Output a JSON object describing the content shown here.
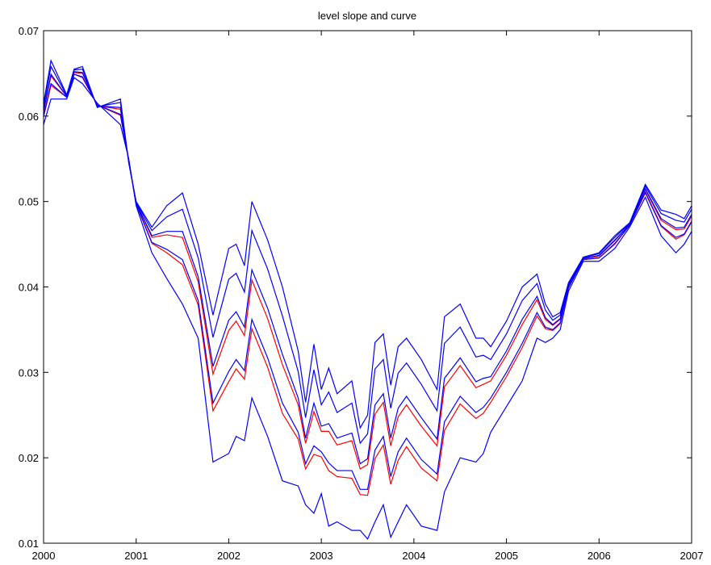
{
  "chart_data": {
    "type": "line",
    "title": "level slope and curve",
    "x": [
      2000.0,
      2000.08,
      2000.25,
      2000.33,
      2000.42,
      2000.58,
      2000.83,
      2000.92,
      2001.0,
      2001.17,
      2001.33,
      2001.5,
      2001.67,
      2001.83,
      2002.0,
      2002.08,
      2002.17,
      2002.25,
      2002.42,
      2002.58,
      2002.75,
      2002.83,
      2002.92,
      2003.0,
      2003.08,
      2003.17,
      2003.33,
      2003.42,
      2003.5,
      2003.58,
      2003.67,
      2003.75,
      2003.83,
      2003.92,
      2004.08,
      2004.25,
      2004.33,
      2004.5,
      2004.67,
      2004.75,
      2004.83,
      2005.0,
      2005.17,
      2005.33,
      2005.42,
      2005.5,
      2005.58,
      2005.67,
      2005.83,
      2006.0,
      2006.17,
      2006.33,
      2006.5,
      2006.67,
      2006.83,
      2006.92,
      2007.0
    ],
    "series": [
      {
        "color": "#ff0000",
        "values": [
          0.0605,
          0.0647,
          0.0623,
          0.0651,
          0.065,
          0.0612,
          0.0608,
          0.0547,
          0.0498,
          0.0458,
          0.0461,
          0.0458,
          0.0406,
          0.0298,
          0.0349,
          0.036,
          0.0343,
          0.0408,
          0.0363,
          0.0309,
          0.0262,
          0.0217,
          0.0254,
          0.0231,
          0.0231,
          0.0215,
          0.022,
          0.0187,
          0.0192,
          0.0251,
          0.0265,
          0.0214,
          0.0248,
          0.0262,
          0.0237,
          0.0214,
          0.0283,
          0.0308,
          0.0282,
          0.0286,
          0.029,
          0.032,
          0.0356,
          0.0385,
          0.0362,
          0.0355,
          0.0362,
          0.0401,
          0.0433,
          0.0436,
          0.0454,
          0.0473,
          0.0514,
          0.0478,
          0.0467,
          0.0468,
          0.0483
        ]
      },
      {
        "color": "#ff0000",
        "values": [
          0.0599,
          0.0636,
          0.0622,
          0.0649,
          0.0645,
          0.0613,
          0.0601,
          0.0548,
          0.0497,
          0.0451,
          0.044,
          0.0426,
          0.0379,
          0.0255,
          0.0289,
          0.0304,
          0.0292,
          0.0351,
          0.0306,
          0.0252,
          0.0222,
          0.0187,
          0.0204,
          0.0201,
          0.0185,
          0.0178,
          0.0176,
          0.0157,
          0.0156,
          0.0199,
          0.0215,
          0.0169,
          0.0197,
          0.0213,
          0.0188,
          0.0173,
          0.0232,
          0.0263,
          0.0246,
          0.0252,
          0.0265,
          0.0295,
          0.0329,
          0.0366,
          0.0351,
          0.0349,
          0.0357,
          0.0399,
          0.0432,
          0.0434,
          0.045,
          0.0472,
          0.051,
          0.0471,
          0.0456,
          0.0461,
          0.0476
        ]
      },
      {
        "color": "#0000ff",
        "values": [
          0.0615,
          0.0665,
          0.0625,
          0.0655,
          0.0658,
          0.061,
          0.062,
          0.0545,
          0.05,
          0.047,
          0.0495,
          0.051,
          0.045,
          0.0367,
          0.0445,
          0.045,
          0.0425,
          0.05,
          0.0455,
          0.04,
          0.0325,
          0.0265,
          0.0333,
          0.028,
          0.0305,
          0.0275,
          0.029,
          0.0235,
          0.025,
          0.0335,
          0.0345,
          0.0285,
          0.033,
          0.034,
          0.0315,
          0.028,
          0.0365,
          0.038,
          0.034,
          0.034,
          0.033,
          0.036,
          0.04,
          0.0415,
          0.038,
          0.0365,
          0.037,
          0.0405,
          0.0435,
          0.044,
          0.046,
          0.0475,
          0.052,
          0.049,
          0.0485,
          0.048,
          0.0495
        ]
      },
      {
        "color": "#0000ff",
        "values": [
          0.0611,
          0.0658,
          0.0624,
          0.0654,
          0.0655,
          0.0611,
          0.0616,
          0.0546,
          0.0499,
          0.0466,
          0.0482,
          0.0491,
          0.0434,
          0.0341,
          0.0409,
          0.0416,
          0.0394,
          0.0466,
          0.0421,
          0.0366,
          0.0301,
          0.0247,
          0.0303,
          0.0262,
          0.0277,
          0.0253,
          0.0264,
          0.0217,
          0.0228,
          0.0304,
          0.0315,
          0.0258,
          0.0299,
          0.0311,
          0.0286,
          0.0255,
          0.0334,
          0.0353,
          0.0318,
          0.032,
          0.0315,
          0.0345,
          0.0384,
          0.0404,
          0.0373,
          0.0361,
          0.0367,
          0.0404,
          0.0434,
          0.0439,
          0.0458,
          0.0474,
          0.0518,
          0.0486,
          0.0478,
          0.0476,
          0.0491
        ]
      },
      {
        "color": "#0000ff",
        "values": [
          0.0606,
          0.0649,
          0.0623,
          0.0652,
          0.0651,
          0.0612,
          0.061,
          0.0547,
          0.0498,
          0.046,
          0.0465,
          0.0465,
          0.0412,
          0.0307,
          0.0361,
          0.0371,
          0.0353,
          0.042,
          0.0375,
          0.0321,
          0.027,
          0.0223,
          0.0264,
          0.0237,
          0.024,
          0.0223,
          0.0229,
          0.0193,
          0.0199,
          0.0262,
          0.0275,
          0.0223,
          0.0258,
          0.0272,
          0.0247,
          0.0222,
          0.0293,
          0.0317,
          0.0289,
          0.0293,
          0.0295,
          0.0325,
          0.0362,
          0.0389,
          0.0364,
          0.0356,
          0.0363,
          0.0402,
          0.0433,
          0.0437,
          0.0455,
          0.0473,
          0.0515,
          0.048,
          0.0469,
          0.047,
          0.0485
        ]
      },
      {
        "color": "#0000ff",
        "values": [
          0.06,
          0.0638,
          0.0622,
          0.0649,
          0.0646,
          0.0613,
          0.0602,
          0.0548,
          0.0497,
          0.0452,
          0.0444,
          0.0432,
          0.0384,
          0.0264,
          0.0301,
          0.0315,
          0.0302,
          0.0362,
          0.0317,
          0.0264,
          0.023,
          0.0193,
          0.0214,
          0.0207,
          0.0194,
          0.0185,
          0.0185,
          0.0163,
          0.0163,
          0.0209,
          0.0225,
          0.0178,
          0.0207,
          0.0223,
          0.0198,
          0.0181,
          0.0242,
          0.0272,
          0.0253,
          0.0259,
          0.027,
          0.03,
          0.0334,
          0.037,
          0.0353,
          0.035,
          0.0358,
          0.0399,
          0.0432,
          0.0434,
          0.0451,
          0.0472,
          0.0511,
          0.0472,
          0.0458,
          0.0462,
          0.0477
        ]
      },
      {
        "color": "#0000ff",
        "values": [
          0.059,
          0.062,
          0.062,
          0.0645,
          0.0638,
          0.0615,
          0.059,
          0.055,
          0.0495,
          0.044,
          0.041,
          0.038,
          0.034,
          0.0195,
          0.0205,
          0.0225,
          0.022,
          0.027,
          0.0225,
          0.0173,
          0.0167,
          0.0145,
          0.0135,
          0.0158,
          0.012,
          0.0125,
          0.0115,
          0.0115,
          0.0105,
          0.0125,
          0.0145,
          0.0107,
          0.0125,
          0.0145,
          0.012,
          0.0115,
          0.016,
          0.02,
          0.0195,
          0.0205,
          0.023,
          0.026,
          0.029,
          0.034,
          0.0335,
          0.034,
          0.035,
          0.0395,
          0.043,
          0.043,
          0.0445,
          0.047,
          0.0505,
          0.046,
          0.044,
          0.045,
          0.0465
        ]
      }
    ],
    "xlim": [
      2000,
      2007
    ],
    "xticks": [
      2000,
      2001,
      2002,
      2003,
      2004,
      2005,
      2006,
      2007
    ],
    "ylim": [
      0.01,
      0.07
    ],
    "yticks": [
      0.01,
      0.02,
      0.03,
      0.04,
      0.05,
      0.06,
      0.07
    ],
    "grid": false
  }
}
